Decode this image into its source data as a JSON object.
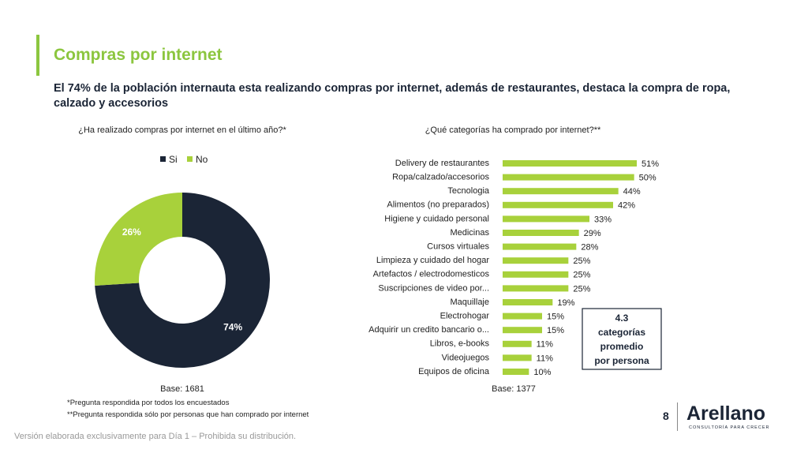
{
  "slide": {
    "title": "Compras por internet",
    "subtitle": "El 74% de la población internauta esta realizando compras por internet, además de restaurantes, destaca la compra de ropa, calzado y accesorios",
    "footnotes": [
      "*Pregunta respondida por todos los encuestados",
      "**Pregunta respondida sólo por personas que han comprado por internet"
    ],
    "page_number": "8",
    "logo": "Arellano",
    "logo_tagline": "CONSULTORÍA PARA CRECER",
    "disclaimer": "Versión elaborada exclusivamente para Día 1 – Prohibida su distribución."
  },
  "chart_data": [
    {
      "type": "donut",
      "title": "¿Ha realizado compras por internet en el último año?*",
      "categories": [
        "Si",
        "No"
      ],
      "values": [
        74,
        26
      ],
      "value_labels": [
        "74%",
        "26%"
      ],
      "colors": [
        "#1b2536",
        "#a8d13b"
      ],
      "note": "Base: 1681"
    },
    {
      "type": "hbar",
      "title": "¿Qué categorías ha comprado por internet?**",
      "categories": [
        "Delivery de restaurantes",
        "Ropa/calzado/accesorios",
        "Tecnologia",
        "Alimentos (no preparados)",
        "Higiene y cuidado personal",
        "Medicinas",
        "Cursos virtuales",
        "Limpieza y cuidado del hogar",
        "Artefactos / electrodomesticos",
        "Suscripciones de video por...",
        "Maquillaje",
        "Electrohogar",
        "Adquirir un credito bancario o...",
        "Libros, e-books",
        "Videojuegos",
        "Equipos de oficina"
      ],
      "values": [
        51,
        50,
        44,
        42,
        33,
        29,
        28,
        25,
        25,
        25,
        19,
        15,
        15,
        11,
        11,
        10
      ],
      "value_labels": [
        "51%",
        "50%",
        "44%",
        "42%",
        "33%",
        "29%",
        "28%",
        "25%",
        "25%",
        "25%",
        "19%",
        "15%",
        "15%",
        "11%",
        "11%",
        "10%"
      ],
      "color": "#a8d13b",
      "note": "Base: 1377",
      "annotation": [
        "4.3",
        "categorías",
        "promedio",
        "por persona"
      ]
    }
  ]
}
